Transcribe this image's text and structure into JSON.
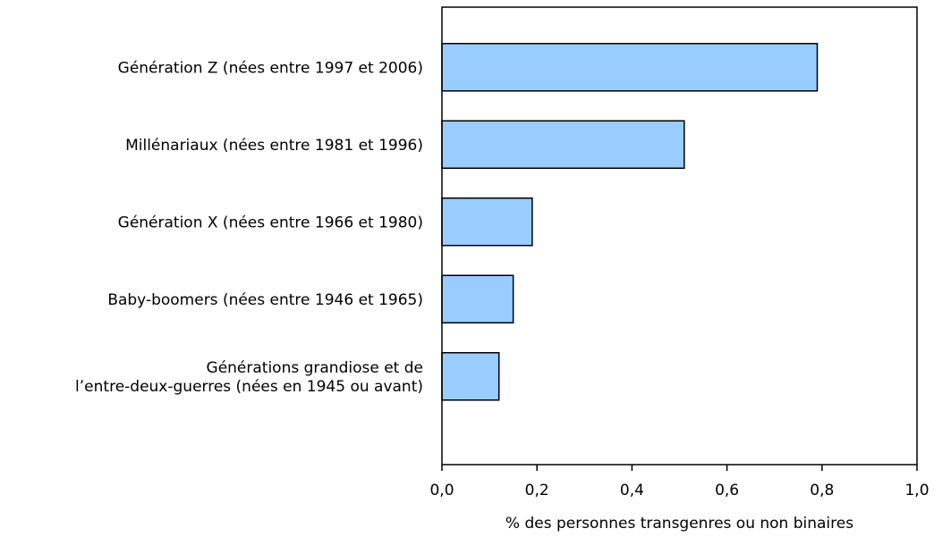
{
  "chart_data": {
    "type": "bar",
    "orientation": "horizontal",
    "categories": [
      [
        "Génération Z (nées entre 1997 et 2006)"
      ],
      [
        "Millénariaux (nées entre 1981 et 1996)"
      ],
      [
        "Génération X (nées entre 1966 et 1980)"
      ],
      [
        "Baby-boomers (nées entre 1946 et 1965)"
      ],
      [
        "Générations grandiose et de",
        "l’entre-deux-guerres (nées en 1945 ou avant)"
      ]
    ],
    "values": [
      0.79,
      0.51,
      0.19,
      0.15,
      0.12
    ],
    "xlabel": "% des personnes transgenres ou non binaires",
    "ylabel": "",
    "title": "",
    "xlim": [
      0,
      1.0
    ],
    "ticks": [
      "0,0",
      "0,2",
      "0,4",
      "0,6",
      "0,8",
      "1,0"
    ],
    "tick_values": [
      0,
      0.2,
      0.4,
      0.6,
      0.8,
      1.0
    ],
    "bar_color": "#99ccff",
    "bar_stroke": "#000000",
    "grid": false,
    "legend": "none"
  }
}
